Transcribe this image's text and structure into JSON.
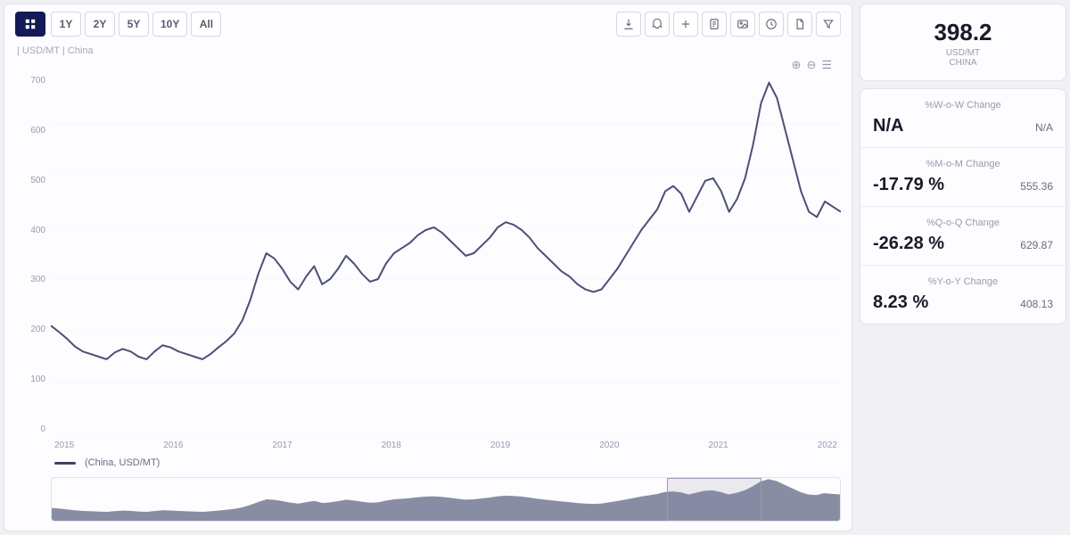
{
  "toolbar": {
    "range_buttons": [
      "1Y",
      "2Y",
      "5Y",
      "10Y",
      "All"
    ],
    "active_index": -1,
    "icon_names": [
      "download-icon",
      "bell-icon",
      "plus-icon",
      "note-icon",
      "image-icon",
      "clock-icon",
      "document-icon",
      "filter-icon"
    ]
  },
  "chart": {
    "type": "line",
    "subtitle": "| USD/MT | China",
    "top_icons": [
      "plus-circle-icon",
      "minus-circle-icon",
      "menu-icon"
    ],
    "line_color": "#4a5178",
    "line_width": 2,
    "grid_color": "#e9e9f1",
    "background_color": "#fdfcfe",
    "ylim": [
      0,
      700
    ],
    "ytick_step": 100,
    "yticks": [
      700,
      600,
      500,
      400,
      300,
      200,
      100,
      0
    ],
    "xlabels": [
      "2015",
      "2016",
      "2017",
      "2018",
      "2019",
      "2020",
      "2021",
      "2022"
    ],
    "x_span_years": 8,
    "values": [
      210,
      198,
      185,
      170,
      160,
      155,
      150,
      145,
      158,
      165,
      160,
      150,
      145,
      160,
      172,
      168,
      160,
      155,
      150,
      145,
      155,
      168,
      180,
      195,
      220,
      260,
      310,
      350,
      340,
      320,
      295,
      280,
      305,
      325,
      290,
      300,
      320,
      345,
      330,
      310,
      295,
      300,
      330,
      350,
      360,
      370,
      385,
      395,
      400,
      390,
      375,
      360,
      345,
      350,
      365,
      380,
      400,
      410,
      405,
      395,
      380,
      360,
      345,
      330,
      315,
      305,
      290,
      280,
      275,
      280,
      300,
      320,
      345,
      370,
      395,
      415,
      435,
      470,
      480,
      465,
      430,
      460,
      490,
      495,
      470,
      430,
      455,
      495,
      560,
      640,
      680,
      650,
      590,
      530,
      470,
      430,
      420,
      450,
      440,
      430
    ],
    "legend_label": "(China, USD/MT)"
  },
  "brush": {
    "fill_color": "#3b4268",
    "window_start_pct": 78,
    "window_width_pct": 12
  },
  "summary": {
    "value": "398.2",
    "unit": "USD/MT",
    "region": "CHINA"
  },
  "changes": [
    {
      "label": "%W-o-W Change",
      "pct": "N/A",
      "sub": "N/A"
    },
    {
      "label": "%M-o-M Change",
      "pct": "-17.79 %",
      "sub": "555.36"
    },
    {
      "label": "%Q-o-Q Change",
      "pct": "-26.28 %",
      "sub": "629.87"
    },
    {
      "label": "%Y-o-Y Change",
      "pct": "8.23 %",
      "sub": "408.13"
    }
  ],
  "colors": {
    "page_bg": "#f1f0f5",
    "card_bg": "#fdfcfe",
    "border": "#e2e2ea",
    "muted_text": "#9a9ab0",
    "text": "#1a1a2a",
    "active_btn_bg": "#141a55"
  }
}
